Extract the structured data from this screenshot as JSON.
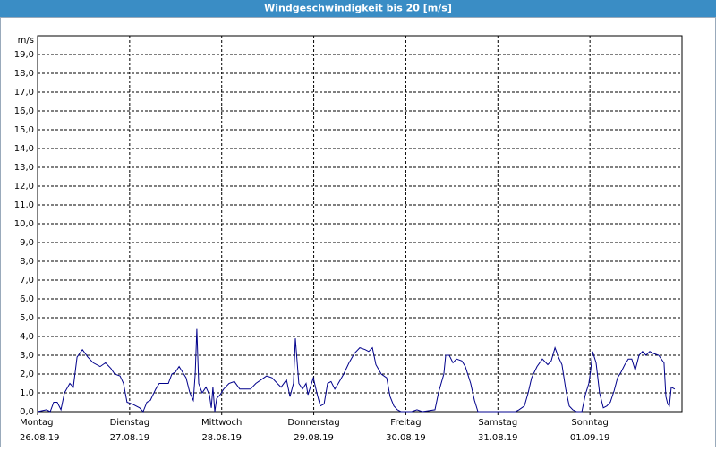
{
  "chart_data": {
    "type": "line",
    "title": "Windgeschwindigkeit bis 20 [m/s]",
    "y_unit": "m/s",
    "xlim": [
      0,
      168
    ],
    "xticks": [
      {
        "value": 0,
        "label": "Montag"
      },
      {
        "value": 24,
        "label": "Dienstag"
      },
      {
        "value": 48,
        "label": "Mittwoch"
      },
      {
        "value": 72,
        "label": "Donnerstag"
      },
      {
        "value": 96,
        "label": "Freitag"
      },
      {
        "value": 120,
        "label": "Samstag"
      },
      {
        "value": 144,
        "label": "Sonntag"
      }
    ],
    "xtick_dates": [
      "26.08.19",
      "27.08.19",
      "28.08.19",
      "29.08.19",
      "30.08.19",
      "31.08.19",
      "01.09.19"
    ],
    "ylim": [
      0,
      20
    ],
    "yticks": [
      {
        "value": 0,
        "label": "0,0"
      },
      {
        "value": 1,
        "label": "1,0"
      },
      {
        "value": 2,
        "label": "2,0"
      },
      {
        "value": 3,
        "label": "3,0"
      },
      {
        "value": 4,
        "label": "4,0"
      },
      {
        "value": 5,
        "label": "5,0"
      },
      {
        "value": 6,
        "label": "6,0"
      },
      {
        "value": 7,
        "label": "7,0"
      },
      {
        "value": 8,
        "label": "8,0"
      },
      {
        "value": 9,
        "label": "9,0"
      },
      {
        "value": 10,
        "label": "10,0"
      },
      {
        "value": 11,
        "label": "11,0"
      },
      {
        "value": 12,
        "label": "12,0"
      },
      {
        "value": 13,
        "label": "13,0"
      },
      {
        "value": 14,
        "label": "14,0"
      },
      {
        "value": 15,
        "label": "15,0"
      },
      {
        "value": 16,
        "label": "16,0"
      },
      {
        "value": 17,
        "label": "17,0"
      },
      {
        "value": 18,
        "label": "18,0"
      },
      {
        "value": 19,
        "label": "19,0"
      }
    ],
    "grid": true,
    "series": [
      {
        "color": "#00008b",
        "x": [
          0,
          2.3,
          3.3,
          4.2,
          5.1,
          6.1,
          7,
          8.4,
          9.3,
          10.3,
          11.7,
          13.1,
          14.5,
          16.3,
          17.7,
          19.1,
          20.1,
          21.5,
          22.4,
          23.3,
          24.7,
          26.6,
          27.5,
          28.5,
          29.4,
          30.8,
          31.7,
          34.1,
          35,
          35.9,
          36.9,
          37.8,
          38.7,
          39.7,
          40.6,
          41.1,
          41.5,
          42,
          42.9,
          43.9,
          44.8,
          45.3,
          45.7,
          46.2,
          46.7,
          47.6,
          48.5,
          49.9,
          51.3,
          52.7,
          55.5,
          56.9,
          58.3,
          59.7,
          61.1,
          62.5,
          63.5,
          64.9,
          65.8,
          66.7,
          67.2,
          68.1,
          69.1,
          70,
          70.5,
          71.9,
          72.8,
          73.7,
          74.7,
          75.6,
          76.5,
          77.5,
          78.4,
          79.8,
          81.2,
          82.6,
          84,
          85.4,
          86.3,
          87.3,
          88.2,
          89.6,
          91,
          91.9,
          92.9,
          93.8,
          94.7,
          97.5,
          98.9,
          100.3,
          103.6,
          104.5,
          105.9,
          106.4,
          107.3,
          108.3,
          109.2,
          110.6,
          111.5,
          112.9,
          113.9,
          114.8,
          124.6,
          125.5,
          126.9,
          127.9,
          128.8,
          130.2,
          131.6,
          133,
          133.9,
          134.9,
          135.8,
          136.7,
          137.7,
          138.6,
          139.5,
          140.5,
          141.9,
          142.8,
          143.7,
          144.2,
          144.7,
          145.6,
          146.5,
          147.5,
          148.4,
          149.3,
          150.3,
          151.2,
          152.1,
          153.1,
          154,
          154.9,
          155.8,
          156.8,
          157.7,
          158.6,
          159.6,
          160.5,
          161.9,
          163.3,
          163.8,
          164.3,
          164.7,
          165.2,
          166.1
        ],
        "values": [
          0,
          0.1,
          0,
          0.5,
          0.5,
          0.1,
          1.0,
          1.5,
          1.3,
          2.9,
          3.3,
          2.9,
          2.6,
          2.4,
          2.6,
          2.3,
          2.0,
          1.9,
          1.5,
          0.5,
          0.4,
          0.2,
          0,
          0.5,
          0.6,
          1.2,
          1.5,
          1.5,
          2.0,
          2.1,
          2.4,
          2.1,
          1.8,
          1.0,
          0.6,
          2.0,
          4.4,
          1.5,
          1.0,
          1.3,
          0.9,
          0.2,
          1.3,
          0,
          0.7,
          0.9,
          1.2,
          1.5,
          1.6,
          1.2,
          1.2,
          1.5,
          1.7,
          1.9,
          1.8,
          1.5,
          1.3,
          1.7,
          0.8,
          1.5,
          3.9,
          1.5,
          1.2,
          1.5,
          0.9,
          1.8,
          1.0,
          0.3,
          0.4,
          1.5,
          1.6,
          1.2,
          1.5,
          2.0,
          2.6,
          3.1,
          3.4,
          3.3,
          3.2,
          3.4,
          2.5,
          2.0,
          1.8,
          0.8,
          0.3,
          0.1,
          0,
          0,
          0.1,
          0,
          0.1,
          1.0,
          2.0,
          3.0,
          3.0,
          2.6,
          2.8,
          2.7,
          2.4,
          1.5,
          0.6,
          0,
          0,
          0.1,
          0.3,
          1.0,
          1.8,
          2.4,
          2.8,
          2.5,
          2.7,
          3.4,
          2.9,
          2.5,
          1.2,
          0.3,
          0.1,
          0,
          0,
          0.9,
          1.5,
          2.2,
          3.2,
          2.6,
          1.0,
          0.2,
          0.3,
          0.5,
          1.1,
          1.8,
          2.1,
          2.5,
          2.8,
          2.8,
          2.2,
          3.0,
          3.2,
          3.0,
          3.2,
          3.1,
          3.0,
          2.6,
          0.8,
          0.4,
          0.3,
          1.3,
          1.2
        ]
      }
    ]
  }
}
